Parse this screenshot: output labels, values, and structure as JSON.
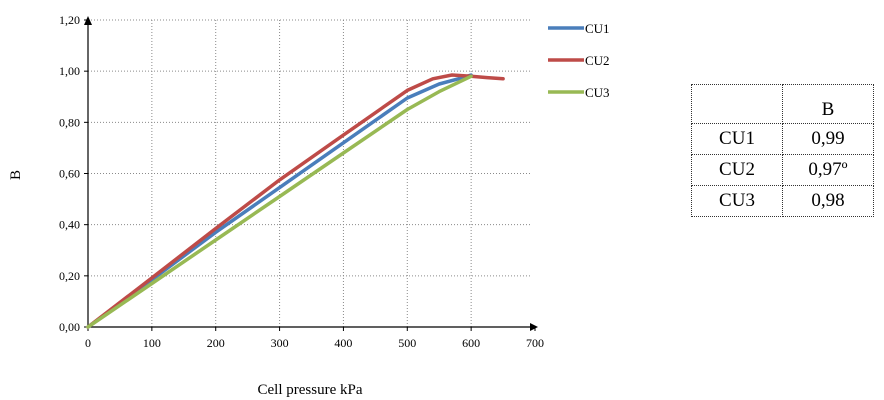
{
  "chart_data": {
    "type": "line",
    "title": "",
    "xlabel": "Cell pressure kPa",
    "ylabel": "B",
    "xlim": [
      0,
      700
    ],
    "ylim": [
      0,
      1.2
    ],
    "x_ticks": [
      "0",
      "100",
      "200",
      "300",
      "400",
      "500",
      "600",
      "700"
    ],
    "y_ticks": [
      "0,00",
      "0,20",
      "0,40",
      "0,60",
      "0,80",
      "1,00",
      "1,20"
    ],
    "grid": true,
    "legend_position": "right",
    "series": [
      {
        "name": "CU1",
        "color": "#4a7ebb",
        "points": [
          [
            0,
            0
          ],
          [
            100,
            0.185
          ],
          [
            200,
            0.37
          ],
          [
            300,
            0.545
          ],
          [
            400,
            0.72
          ],
          [
            500,
            0.895
          ],
          [
            550,
            0.95
          ],
          [
            580,
            0.97
          ],
          [
            600,
            0.985
          ]
        ]
      },
      {
        "name": "CU2",
        "color": "#be4b48",
        "points": [
          [
            0,
            0
          ],
          [
            100,
            0.192
          ],
          [
            200,
            0.385
          ],
          [
            300,
            0.575
          ],
          [
            400,
            0.75
          ],
          [
            500,
            0.925
          ],
          [
            540,
            0.97
          ],
          [
            570,
            0.985
          ],
          [
            600,
            0.98
          ],
          [
            625,
            0.975
          ],
          [
            650,
            0.97
          ]
        ]
      },
      {
        "name": "CU3",
        "color": "#98b954",
        "points": [
          [
            0,
            0
          ],
          [
            100,
            0.17
          ],
          [
            200,
            0.34
          ],
          [
            300,
            0.51
          ],
          [
            400,
            0.68
          ],
          [
            500,
            0.85
          ],
          [
            550,
            0.92
          ],
          [
            600,
            0.98
          ]
        ]
      }
    ]
  },
  "table": {
    "header": [
      "",
      "B"
    ],
    "rows": [
      {
        "name": "CU1",
        "value": "0,99"
      },
      {
        "name": "CU2",
        "value": "0,97º"
      },
      {
        "name": "CU3",
        "value": "0,98"
      }
    ]
  }
}
